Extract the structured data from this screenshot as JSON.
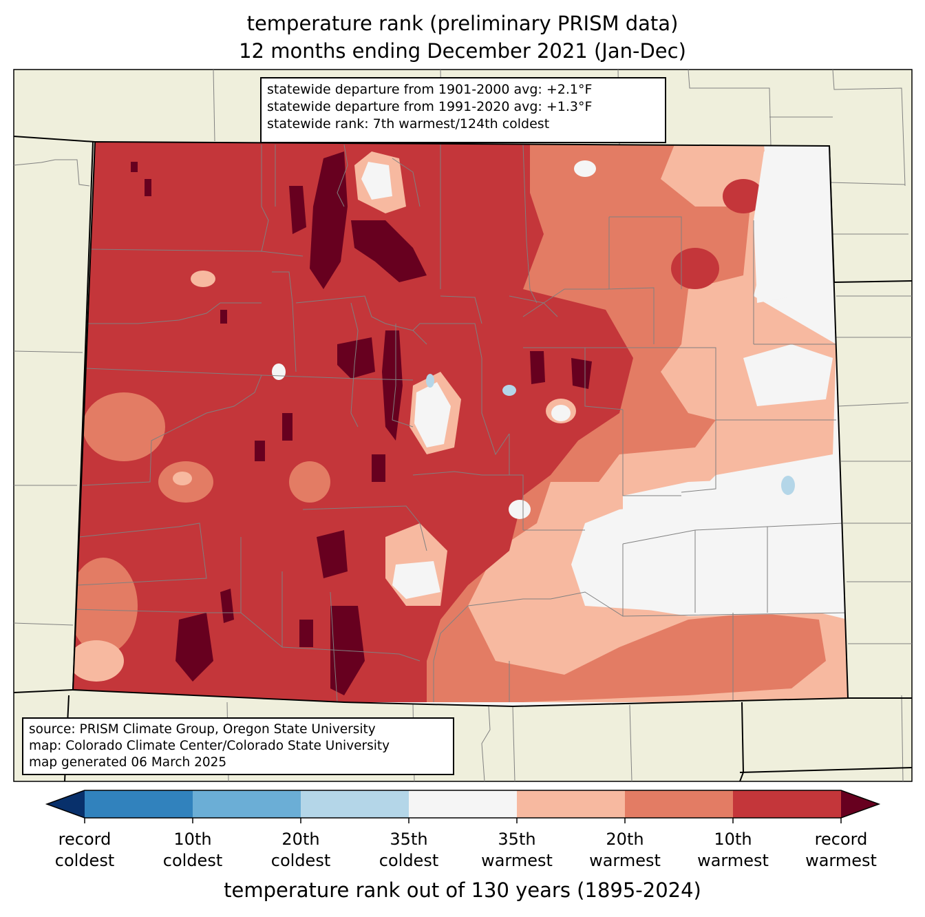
{
  "title": {
    "line1": "temperature rank (preliminary PRISM data)",
    "line2": "12 months ending December 2021 (Jan-Dec)"
  },
  "stats": {
    "line1": "statewide departure from 1901-2000 avg: +2.1°F",
    "line2": "statewide departure from 1991-2020 avg: +1.3°F",
    "line3": "statewide rank: 7th warmest/124th coldest"
  },
  "source": {
    "line1": "source: PRISM Climate Group, Oregon State University",
    "line2": "map: Colorado Climate Center/Colorado State University",
    "line3": "map generated 06 March 2025"
  },
  "colorbar": {
    "title": "temperature rank out of 130 years (1895-2024)",
    "labels": [
      {
        "l1": "record",
        "l2": "coldest"
      },
      {
        "l1": "10th",
        "l2": "coldest"
      },
      {
        "l1": "20th",
        "l2": "coldest"
      },
      {
        "l1": "35th",
        "l2": "coldest"
      },
      {
        "l1": "35th",
        "l2": "warmest"
      },
      {
        "l1": "20th",
        "l2": "warmest"
      },
      {
        "l1": "10th",
        "l2": "warmest"
      },
      {
        "l1": "record",
        "l2": "warmest"
      }
    ],
    "colors": {
      "record_coldest_extend": "#08306b",
      "coldest_1_10": "#3182bd",
      "coldest_10_20": "#6baed6",
      "coldest_20_35": "#b4d6e8",
      "near_normal": "#f5f5f5",
      "warmest_35_20": "#f7b9a0",
      "warmest_20_10": "#e37c64",
      "warmest_10_1": "#c4363a",
      "record_warmest_extend": "#67001f"
    }
  },
  "map": {
    "land_color": "#efefdc",
    "state": "Colorado"
  }
}
